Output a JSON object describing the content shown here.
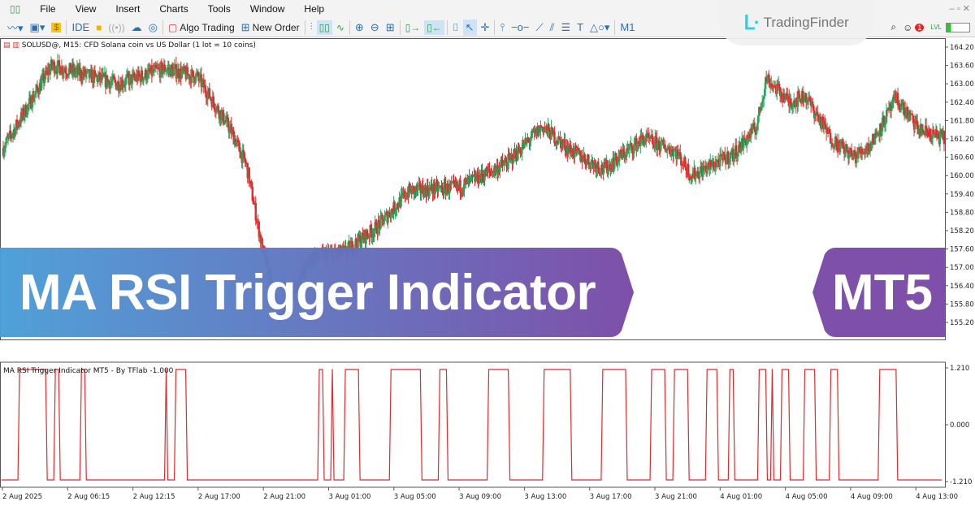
{
  "menu": [
    "File",
    "View",
    "Insert",
    "Charts",
    "Tools",
    "Window",
    "Help"
  ],
  "toolbar": {
    "ide": "IDE",
    "algo_trading": "Algo Trading",
    "new_order": "New Order",
    "timeframe": "M1",
    "lvl": "LVL",
    "notifications": "1"
  },
  "logo": "TradingFinder",
  "chart": {
    "symbol_label": "SOLUSD@, M15:  CFD Solana coin vs US Dollar (1 lot = 10 coins)",
    "price_ticks": [
      "164.20",
      "163.60",
      "163.00",
      "162.40",
      "161.80",
      "161.20",
      "160.60",
      "160.00",
      "159.40",
      "158.80",
      "158.20",
      "157.60",
      "157.00",
      "156.40",
      "155.80",
      "155.20"
    ],
    "time_ticks": [
      "2 Aug 2025",
      "2 Aug 06:15",
      "2 Aug 12:15",
      "2 Aug 17:00",
      "2 Aug 21:00",
      "3 Aug 01:00",
      "3 Aug 05:00",
      "3 Aug 09:00",
      "3 Aug 13:00",
      "3 Aug 17:00",
      "3 Aug 21:00",
      "4 Aug 01:00",
      "4 Aug 05:00",
      "4 Aug 09:00",
      "4 Aug 13:00"
    ],
    "colors": {
      "bull": "#26a65b",
      "bear": "#e8262b",
      "indicator": "#e8262b"
    }
  },
  "chart_data": {
    "type": "candlestick",
    "ylim": [
      155.0,
      164.4
    ],
    "price_path": [
      [
        0,
        160.9
      ],
      [
        15,
        163.6
      ],
      [
        25,
        163.3
      ],
      [
        35,
        163.0
      ],
      [
        50,
        163.5
      ],
      [
        60,
        163.2
      ],
      [
        70,
        161.5
      ],
      [
        75,
        160.3
      ],
      [
        80,
        157.5
      ],
      [
        85,
        155.5
      ],
      [
        95,
        157.3
      ],
      [
        105,
        157.5
      ],
      [
        115,
        158.3
      ],
      [
        125,
        159.5
      ],
      [
        140,
        159.6
      ],
      [
        155,
        160.4
      ],
      [
        166,
        161.6
      ],
      [
        175,
        160.8
      ],
      [
        185,
        160.2
      ],
      [
        197,
        161.2
      ],
      [
        207,
        160.8
      ],
      [
        212,
        160.0
      ],
      [
        225,
        160.7
      ],
      [
        232,
        161.6
      ],
      [
        235,
        163.2
      ],
      [
        242,
        162.4
      ],
      [
        247,
        162.6
      ],
      [
        255,
        161.2
      ],
      [
        262,
        160.6
      ],
      [
        267,
        161.0
      ],
      [
        275,
        162.5
      ],
      [
        282,
        161.5
      ],
      [
        290,
        161.2
      ]
    ],
    "indicator": {
      "label": "MA RSI Trigger Indicator MT5 - By TFlab -1.000",
      "ticks": [
        "1.210",
        "0.000",
        "-1.210"
      ],
      "ylim": [
        -1.21,
        1.21
      ],
      "high_bar_ranges": [
        [
          5,
          14
        ],
        [
          16,
          18
        ],
        [
          24,
          26
        ],
        [
          50,
          51
        ],
        [
          53,
          57
        ],
        [
          97,
          99
        ],
        [
          101,
          102
        ],
        [
          105,
          110
        ],
        [
          119,
          129
        ],
        [
          134,
          137
        ],
        [
          149,
          156
        ],
        [
          166,
          175
        ],
        [
          184,
          192
        ],
        [
          199,
          204
        ],
        [
          206,
          211
        ],
        [
          216,
          220
        ],
        [
          223,
          225
        ],
        [
          232,
          235
        ],
        [
          236,
          237
        ],
        [
          239,
          242
        ],
        [
          246,
          250
        ],
        [
          254,
          257
        ],
        [
          269,
          275
        ]
      ]
    }
  },
  "banner": {
    "title": "MA RSI Trigger Indicator",
    "platform": "MT5",
    "colors": {
      "start": "#4a9ed8",
      "end": "#7a4aa6"
    }
  }
}
